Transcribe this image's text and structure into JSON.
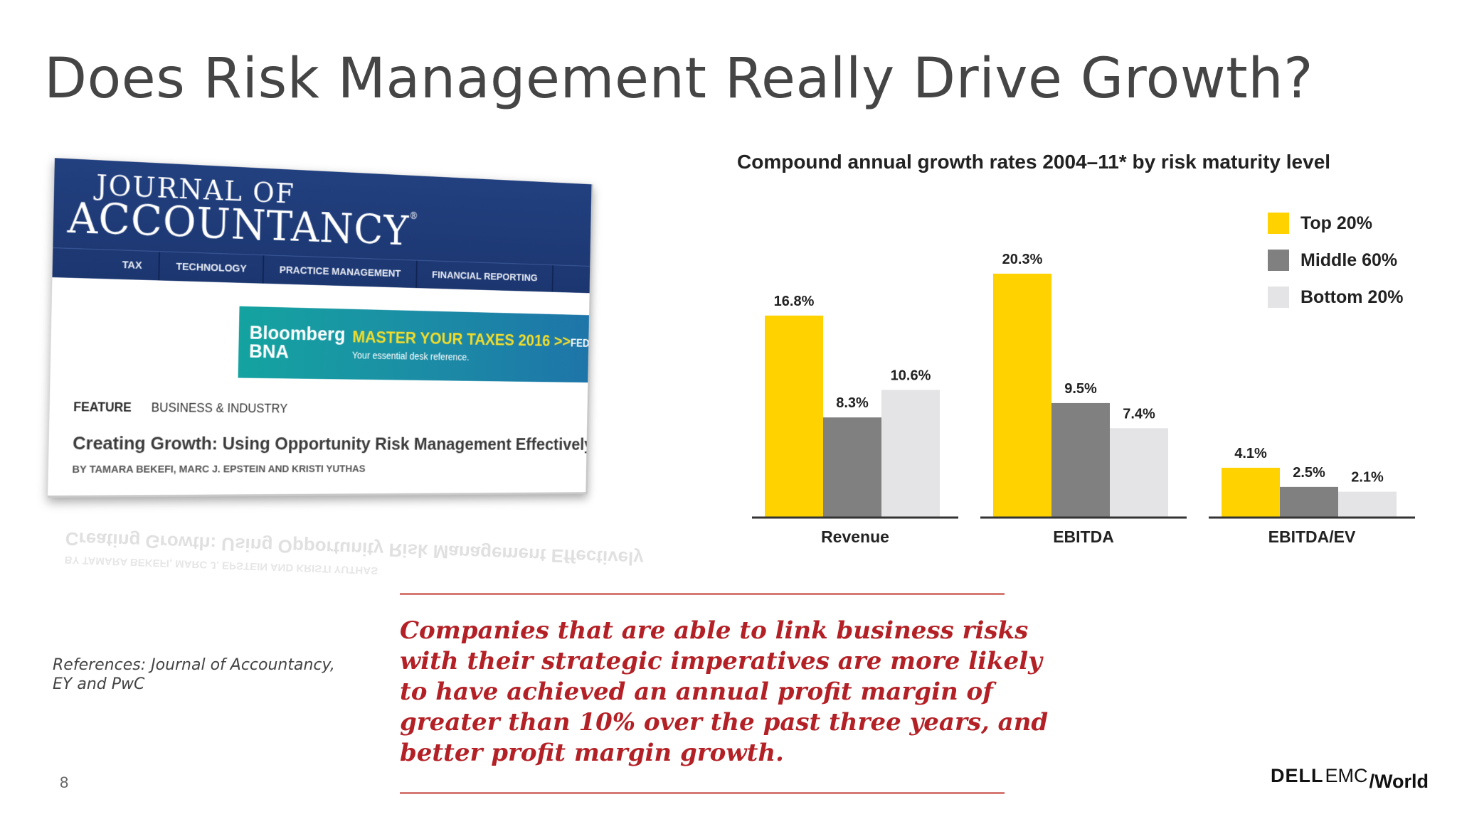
{
  "slide": {
    "title": "Does Risk Management Really Drive Growth?",
    "page_number": "8",
    "references_line1": "References: Journal of Accountancy,",
    "references_line2": "EY and PwC"
  },
  "article": {
    "logo_line1": "JOURNAL OF",
    "logo_line2": "ACCOUNTANCY",
    "logo_reg": "®",
    "nav": [
      "TAX",
      "TECHNOLOGY",
      "PRACTICE MANAGEMENT",
      "FINANCIAL REPORTING"
    ],
    "ad": {
      "brand_line1": "Bloomberg",
      "brand_line2": "BNA",
      "headline": "MASTER YOUR TAXES 2016 >>",
      "headline_tail": "FED",
      "subtext": "Your essential desk reference."
    },
    "tag_feature": "FEATURE",
    "tag_topic": "BUSINESS & INDUSTRY",
    "headline": "Creating Growth: Using Opportunity Risk Management Effectively",
    "byline": "BY TAMARA BEKEFI, MARC J. EPSTEIN AND KRISTI YUTHAS"
  },
  "chart_data": {
    "type": "bar",
    "title": "Compound annual growth rates 2004–11* by risk maturity level",
    "categories": [
      "Revenue",
      "EBITDA",
      "EBITDA/EV"
    ],
    "series": [
      {
        "name": "Top 20%",
        "values": [
          16.8,
          20.3,
          4.1
        ],
        "labels": [
          "16.8%",
          "20.3%",
          "4.1%"
        ],
        "color": "#ffd200"
      },
      {
        "name": "Middle 60%",
        "values": [
          8.3,
          9.5,
          2.5
        ],
        "labels": [
          "8.3%",
          "9.5%",
          "2.5%"
        ],
        "color": "#808080"
      },
      {
        "name": "Bottom 20%",
        "values": [
          10.6,
          7.4,
          2.1
        ],
        "labels": [
          "10.6%",
          "7.4%",
          "2.1%"
        ],
        "color": "#e4e4e6"
      }
    ],
    "xlabel": "",
    "ylabel": "",
    "ylim": [
      0,
      21
    ],
    "grid": false,
    "legend": "top-right"
  },
  "quote": {
    "lines": [
      "Companies that are able to link business risks",
      "with their strategic imperatives are more likely",
      "to have achieved an annual profit margin of",
      "greater than 10% over the past three years, and",
      "better profit margin growth."
    ],
    "color": "#b32025"
  },
  "brand": {
    "dell": "DELL",
    "emc": "EMC",
    "world": "/World"
  }
}
